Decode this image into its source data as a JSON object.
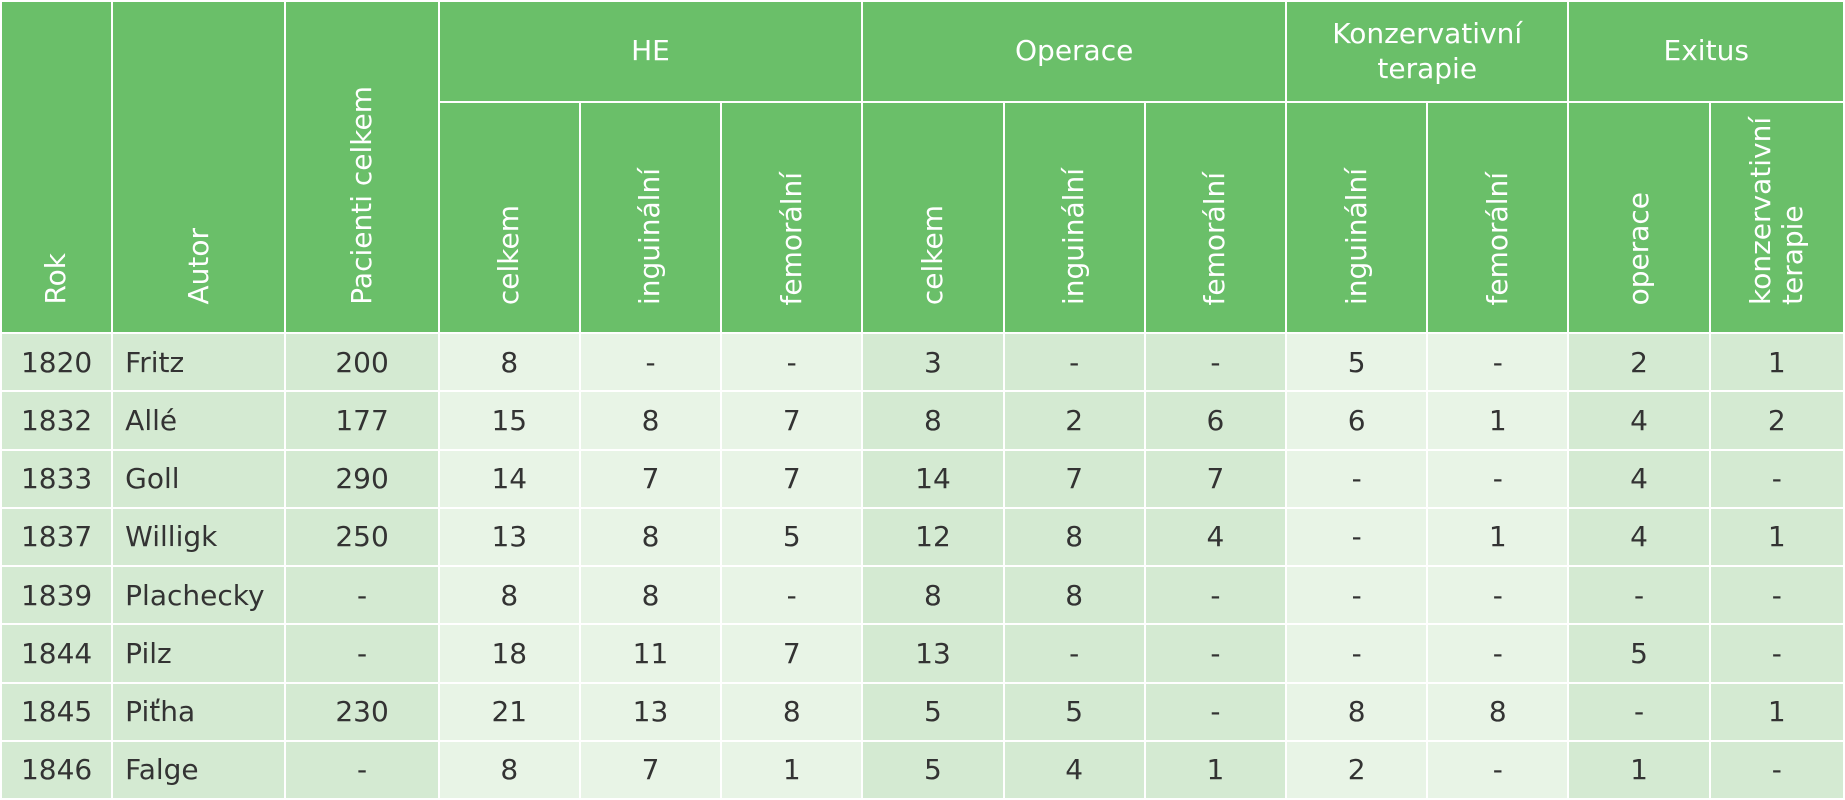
{
  "header": {
    "rok": "Rok",
    "autor": "Autor",
    "pacienti": "Pacienti celkem",
    "groups": {
      "he": "HE",
      "operace": "Operace",
      "konzervativni": "Konzervativní terapie",
      "exitus": "Exitus"
    },
    "sub": {
      "he_celkem": "celkem",
      "he_inguinalni": "inguinální",
      "he_femoralni": "femorální",
      "op_celkem": "celkem",
      "op_inguinalni": "inguinální",
      "op_femoralni": "femorální",
      "kt_inguinalni": "inguinální",
      "kt_femoralni": "femorální",
      "ex_operace": "operace",
      "ex_konzervativni": "konzervativní terapie"
    }
  },
  "rows": [
    {
      "rok": "1820",
      "autor": "Fritz",
      "pacienti": "200",
      "he_celkem": "8",
      "he_inguinalni": "-",
      "he_femoralni": "-",
      "op_celkem": "3",
      "op_inguinalni": "-",
      "op_femoralni": "-",
      "kt_inguinalni": "5",
      "kt_femoralni": "-",
      "ex_operace": "2",
      "ex_konzervativni": "1"
    },
    {
      "rok": "1832",
      "autor": "Allé",
      "pacienti": "177",
      "he_celkem": "15",
      "he_inguinalni": "8",
      "he_femoralni": "7",
      "op_celkem": "8",
      "op_inguinalni": "2",
      "op_femoralni": "6",
      "kt_inguinalni": "6",
      "kt_femoralni": "1",
      "ex_operace": "4",
      "ex_konzervativni": "2"
    },
    {
      "rok": "1833",
      "autor": "Goll",
      "pacienti": "290",
      "he_celkem": "14",
      "he_inguinalni": "7",
      "he_femoralni": "7",
      "op_celkem": "14",
      "op_inguinalni": "7",
      "op_femoralni": "7",
      "kt_inguinalni": "-",
      "kt_femoralni": "-",
      "ex_operace": "4",
      "ex_konzervativni": "-"
    },
    {
      "rok": "1837",
      "autor": "Willigk",
      "pacienti": "250",
      "he_celkem": "13",
      "he_inguinalni": "8",
      "he_femoralni": "5",
      "op_celkem": "12",
      "op_inguinalni": "8",
      "op_femoralni": "4",
      "kt_inguinalni": "-",
      "kt_femoralni": "1",
      "ex_operace": "4",
      "ex_konzervativni": "1"
    },
    {
      "rok": "1839",
      "autor": "Plachecky",
      "pacienti": "-",
      "he_celkem": "8",
      "he_inguinalni": "8",
      "he_femoralni": "-",
      "op_celkem": "8",
      "op_inguinalni": "8",
      "op_femoralni": "-",
      "kt_inguinalni": "-",
      "kt_femoralni": "-",
      "ex_operace": "-",
      "ex_konzervativni": "-"
    },
    {
      "rok": "1844",
      "autor": "Pilz",
      "pacienti": "-",
      "he_celkem": "18",
      "he_inguinalni": "11",
      "he_femoralni": "7",
      "op_celkem": "13",
      "op_inguinalni": "-",
      "op_femoralni": "-",
      "kt_inguinalni": "-",
      "kt_femoralni": "-",
      "ex_operace": "5",
      "ex_konzervativni": "-"
    },
    {
      "rok": "1845",
      "autor": "Piťha",
      "pacienti": "230",
      "he_celkem": "21",
      "he_inguinalni": "13",
      "he_femoralni": "8",
      "op_celkem": "5",
      "op_inguinalni": "5",
      "op_femoralni": "-",
      "kt_inguinalni": "8",
      "kt_femoralni": "8",
      "ex_operace": "-",
      "ex_konzervativni": "1"
    },
    {
      "rok": "1846",
      "autor": "Falge",
      "pacienti": "-",
      "he_celkem": "8",
      "he_inguinalni": "7",
      "he_femoralni": "1",
      "op_celkem": "5",
      "op_inguinalni": "4",
      "op_femoralni": "1",
      "kt_inguinalni": "2",
      "kt_femoralni": "-",
      "ex_operace": "1",
      "ex_konzervativni": "-"
    }
  ]
}
